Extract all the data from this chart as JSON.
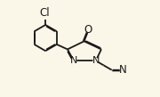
{
  "bg_color": "#faf6e8",
  "bond_color": "#1a1a1a",
  "bond_lw": 1.3,
  "font_size": 8.0,
  "fig_width": 1.8,
  "fig_height": 1.09,
  "dpi": 100,
  "xlim": [
    0,
    10.5
  ],
  "ylim": [
    0,
    6.2
  ]
}
